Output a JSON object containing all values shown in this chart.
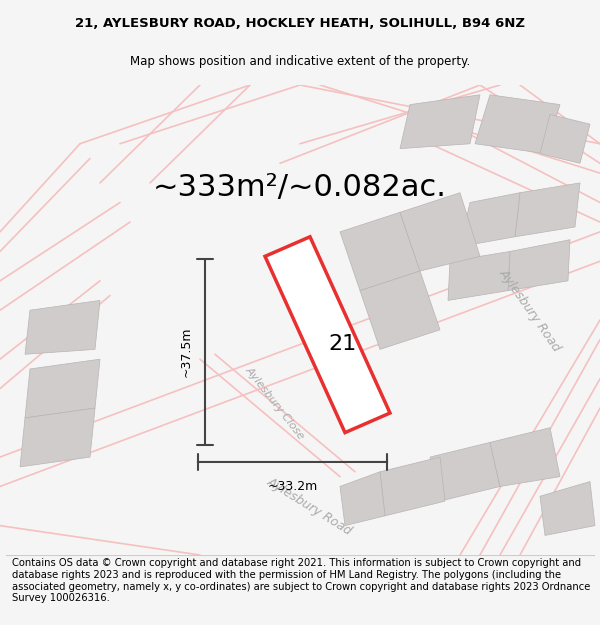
{
  "title_line1": "21, AYLESBURY ROAD, HOCKLEY HEATH, SOLIHULL, B94 6NZ",
  "title_line2": "Map shows position and indicative extent of the property.",
  "area_text": "~333m²/~0.082ac.",
  "dim_width": "~33.2m",
  "dim_height": "~37.5m",
  "label_21": "21",
  "road_label1": "Aylesbury Road",
  "road_label2": "Aylesbury Road",
  "road_label_close": "Aylesbury Close",
  "footer_text": "Contains OS data © Crown copyright and database right 2021. This information is subject to Crown copyright and database rights 2023 and is reproduced with the permission of HM Land Registry. The polygons (including the associated geometry, namely x, y co-ordinates) are subject to Crown copyright and database rights 2023 Ordnance Survey 100026316.",
  "bg_color": "#f5f5f5",
  "map_bg": "#f0eeee",
  "plot_color_red": "#e83030",
  "plot_fill": "#ffffff",
  "road_color": "#f5c0c0",
  "building_color": "#d8d4d4",
  "dim_line_color": "#444444",
  "road_label_color": "#aaaaaa",
  "title_fontsize": 9.5,
  "subtitle_fontsize": 8.5,
  "area_fontsize": 22,
  "footer_fontsize": 7.2
}
